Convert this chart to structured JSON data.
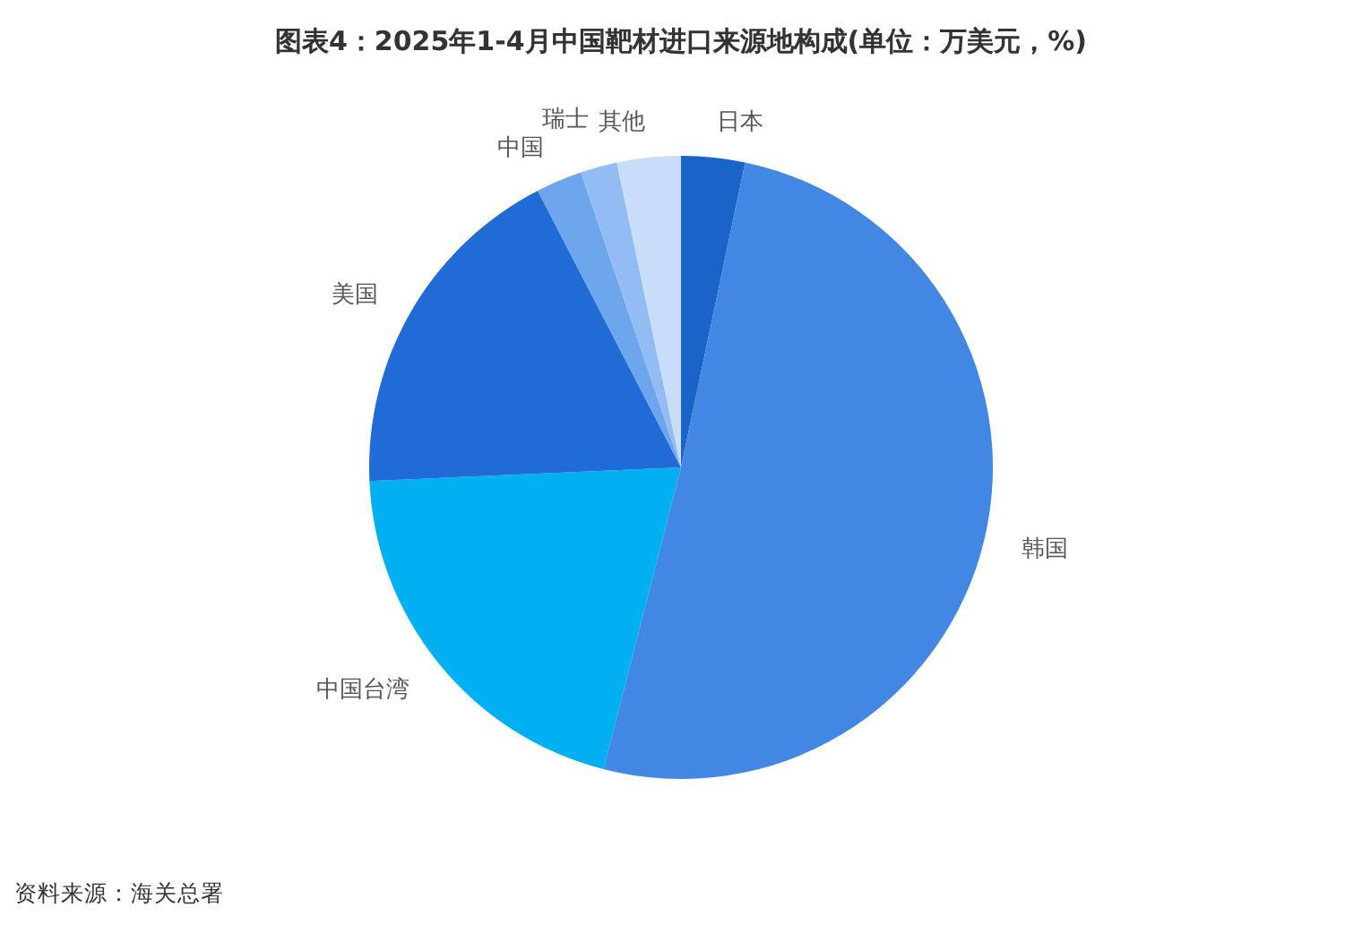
{
  "chart_data": {
    "type": "pie",
    "title": "图表4：2025年1-4月中国靶材进口来源地构成(单位：万美元，%)",
    "categories": [
      "日本",
      "韩国",
      "中国台湾",
      "美国",
      "中国",
      "瑞士",
      "其他"
    ],
    "values": [
      3.3,
      50.7,
      20.3,
      18.1,
      2.4,
      1.9,
      3.3
    ],
    "colors": [
      "#1a64c8",
      "#4287e3",
      "#00b0f0",
      "#206bd6",
      "#6ea6ee",
      "#92bcf3",
      "#c8ddf8"
    ],
    "annotations": [
      "资料来源：海关总署"
    ]
  }
}
